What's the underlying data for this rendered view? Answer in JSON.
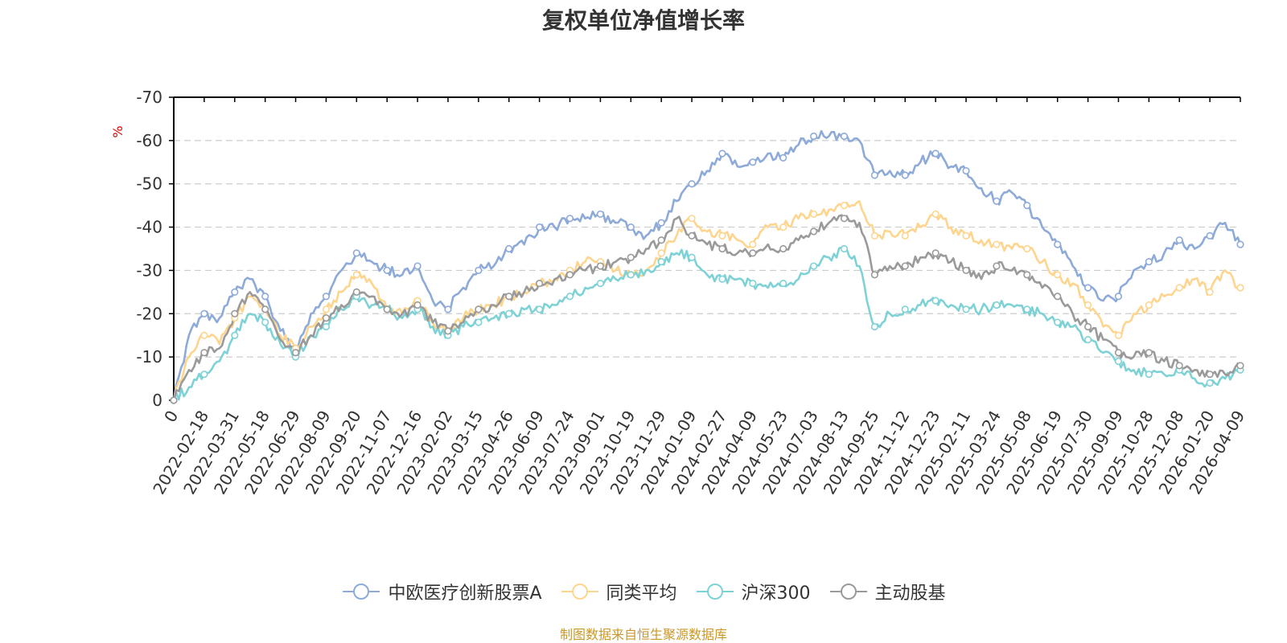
{
  "title": "复权单位净值增长率",
  "source": "制图数据来自恒生聚源数据库",
  "colors": {
    "series": [
      "#8daad8",
      "#fdd58f",
      "#7ed2d6",
      "#9a9a9a"
    ],
    "axis": "#000000",
    "grid": "#cccccc",
    "text": "#333333",
    "unit": "#dd0000"
  },
  "chart_data": {
    "type": "line",
    "ylabel": "%",
    "ylim": [
      -70,
      0
    ],
    "yticks": [
      0,
      -10,
      -20,
      -30,
      -40,
      -50,
      -60,
      -70
    ],
    "x_ticks": [
      "0",
      "2022-02-18",
      "2022-03-31",
      "2022-05-18",
      "2022-06-29",
      "2022-08-09",
      "2022-09-20",
      "2022-11-07",
      "2022-12-16",
      "2023-02-02",
      "2023-03-15",
      "2023-04-26",
      "2023-06-09",
      "2023-07-24",
      "2023-09-01",
      "2023-10-19",
      "2023-11-29",
      "2024-01-09",
      "2024-02-27",
      "2024-04-09",
      "2024-05-23",
      "2024-07-03",
      "2024-08-13",
      "2024-09-25",
      "2024-11-12",
      "2024-12-23",
      "2025-02-11",
      "2025-03-24",
      "2025-05-08",
      "2025-06-19",
      "2025-07-30",
      "2025-09-09",
      "2025-10-28",
      "2025-12-08",
      "2026-01-20",
      "2026-04-09"
    ],
    "x": [
      0,
      0.5,
      1,
      1.5,
      2,
      2.5,
      3,
      3.5,
      4,
      4.5,
      5,
      5.5,
      6,
      6.5,
      7,
      7.5,
      8,
      8.5,
      9,
      9.5,
      10,
      10.5,
      11,
      11.5,
      12,
      12.5,
      13,
      13.5,
      14,
      14.5,
      15,
      15.5,
      16,
      16.5,
      17,
      17.5,
      18,
      18.5,
      19,
      19.5,
      20,
      20.5,
      21,
      21.5,
      22,
      22.5,
      23,
      23.5,
      24,
      24.5,
      25,
      25.5,
      26,
      26.5,
      27,
      27.5,
      28,
      28.5,
      29,
      29.5,
      30,
      30.5,
      31,
      31.5,
      32,
      32.5,
      33,
      33.5,
      34,
      34.5,
      35
    ],
    "series": [
      {
        "name": "中欧医疗创新股票A",
        "values": [
          0,
          -15,
          -20,
          -19,
          -25,
          -28,
          -24,
          -16,
          -12,
          -20,
          -24,
          -30,
          -34,
          -32,
          -30,
          -29,
          -31,
          -23,
          -21,
          -26,
          -30,
          -31,
          -35,
          -36,
          -40,
          -40,
          -42,
          -42,
          -43,
          -41,
          -40,
          -38,
          -41,
          -46,
          -50,
          -53,
          -57,
          -54,
          -55,
          -57,
          -56,
          -59,
          -61,
          -61,
          -61,
          -60,
          -52,
          -53,
          -52,
          -55,
          -57,
          -54,
          -53,
          -49,
          -46,
          -48,
          -45,
          -40,
          -36,
          -31,
          -26,
          -23,
          -24,
          -30,
          -32,
          -34,
          -37,
          -35,
          -38,
          -41,
          -36
        ]
      },
      {
        "name": "同类平均",
        "values": [
          0,
          -10,
          -15,
          -13,
          -19,
          -24,
          -21,
          -15,
          -12,
          -17,
          -21,
          -25,
          -29,
          -27,
          -21,
          -20,
          -23,
          -18,
          -16,
          -19,
          -21,
          -22,
          -24,
          -25,
          -27,
          -28,
          -30,
          -32,
          -32,
          -30,
          -29,
          -30,
          -34,
          -38,
          -42,
          -39,
          -38,
          -37,
          -36,
          -40,
          -40,
          -42,
          -43,
          -44,
          -45,
          -46,
          -38,
          -39,
          -38,
          -40,
          -43,
          -40,
          -38,
          -37,
          -36,
          -35,
          -35,
          -32,
          -29,
          -27,
          -22,
          -17,
          -15,
          -20,
          -22,
          -24,
          -26,
          -28,
          -25,
          -30,
          -26
        ]
      },
      {
        "name": "沪深300",
        "values": [
          0,
          -3,
          -6,
          -9,
          -15,
          -20,
          -18,
          -13,
          -10,
          -15,
          -17,
          -21,
          -24,
          -22,
          -21,
          -19,
          -21,
          -17,
          -15,
          -17,
          -18,
          -19,
          -20,
          -21,
          -21,
          -22,
          -24,
          -26,
          -27,
          -28,
          -29,
          -30,
          -32,
          -34,
          -33,
          -29,
          -28,
          -28,
          -27,
          -26,
          -27,
          -28,
          -31,
          -33,
          -35,
          -31,
          -17,
          -20,
          -21,
          -22,
          -23,
          -22,
          -21,
          -21,
          -22,
          -22,
          -21,
          -20,
          -18,
          -17,
          -14,
          -11,
          -9,
          -7,
          -6,
          -6,
          -7,
          -5,
          -4,
          -5,
          -7
        ]
      },
      {
        "name": "主动股基",
        "values": [
          0,
          -7,
          -11,
          -12,
          -20,
          -25,
          -21,
          -14,
          -11,
          -15,
          -19,
          -22,
          -25,
          -24,
          -21,
          -20,
          -22,
          -18,
          -16,
          -18,
          -21,
          -22,
          -24,
          -25,
          -27,
          -28,
          -29,
          -30,
          -31,
          -32,
          -33,
          -35,
          -37,
          -42,
          -38,
          -36,
          -35,
          -34,
          -34,
          -36,
          -35,
          -37,
          -39,
          -41,
          -42,
          -41,
          -29,
          -31,
          -31,
          -33,
          -34,
          -32,
          -30,
          -28,
          -31,
          -30,
          -29,
          -26,
          -24,
          -20,
          -17,
          -14,
          -11,
          -10,
          -11,
          -9,
          -8,
          -7,
          -6,
          -6,
          -8
        ]
      }
    ]
  }
}
